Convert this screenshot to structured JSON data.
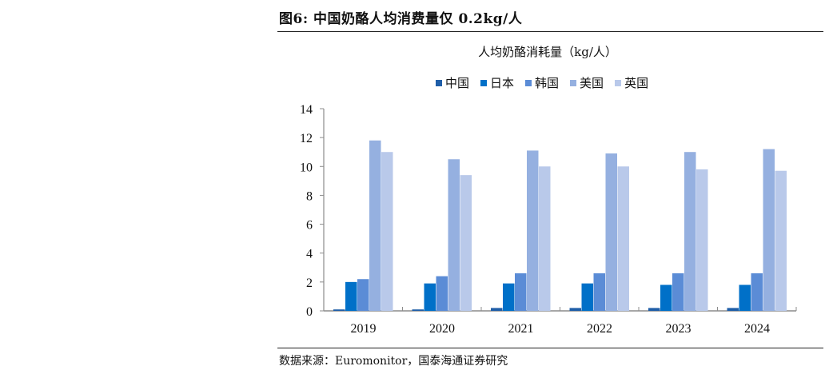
{
  "figure": {
    "title": "图6:  中国奶酪人均消费量仅 0.2kg/人",
    "source": "数据来源：Euromonitor，国泰海通证券研究"
  },
  "colors": {
    "中国": "#1f5ea8",
    "日本": "#0070c8",
    "韩国": "#5b8cd6",
    "美国": "#95b0e0",
    "英国": "#b9c9ea",
    "axis": "#8c8c8c"
  },
  "chart_data": {
    "type": "bar",
    "title": "人均奶酪消耗量（kg/人）",
    "xlabel": "",
    "ylabel": "",
    "categories": [
      "2019",
      "2020",
      "2021",
      "2022",
      "2023",
      "2024"
    ],
    "series": [
      {
        "name": "中国",
        "values": [
          0.1,
          0.1,
          0.2,
          0.2,
          0.2,
          0.2
        ]
      },
      {
        "name": "日本",
        "values": [
          2.0,
          1.9,
          1.9,
          1.9,
          1.8,
          1.8
        ]
      },
      {
        "name": "韩国",
        "values": [
          2.2,
          2.4,
          2.6,
          2.6,
          2.6,
          2.6
        ]
      },
      {
        "name": "美国",
        "values": [
          11.8,
          10.5,
          11.1,
          10.9,
          11.0,
          11.2
        ]
      },
      {
        "name": "英国",
        "values": [
          11.0,
          9.4,
          10.0,
          10.0,
          9.8,
          9.7
        ]
      }
    ],
    "ylim": [
      0,
      14
    ],
    "yticks": [
      0,
      2,
      4,
      6,
      8,
      10,
      12,
      14
    ],
    "grid": false,
    "legend_position": "top"
  }
}
